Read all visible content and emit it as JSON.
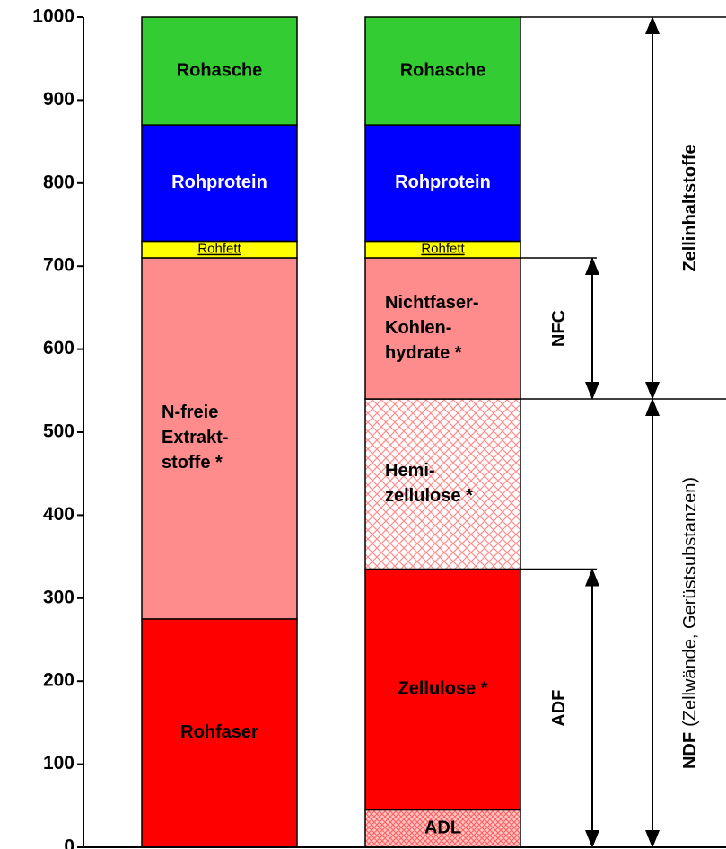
{
  "chart_data": {
    "type": "stacked-bar",
    "ylim": [
      0,
      1000
    ],
    "yticks": [
      0,
      100,
      200,
      300,
      400,
      500,
      600,
      700,
      800,
      900,
      1000
    ],
    "stacks": [
      {
        "segments": [
          {
            "label": [
              "Rohfaser"
            ],
            "value": 275,
            "color": "#ff0000",
            "label_color": "#000000"
          },
          {
            "label": [
              "N-freie",
              "Extrakt-",
              "stoffe *"
            ],
            "value": 435,
            "color": "#ff8c8c",
            "label_color": "#000000"
          },
          {
            "label": [
              "Rohfett"
            ],
            "value": 20,
            "color": "#ffff00",
            "label_color": "#000000",
            "small": true
          },
          {
            "label": [
              "Rohprotein"
            ],
            "value": 140,
            "color": "#0000ff",
            "label_color": "#ffffff"
          },
          {
            "label": [
              "Rohasche"
            ],
            "value": 130,
            "color": "#33cc33",
            "label_color": "#000000"
          }
        ]
      },
      {
        "segments": [
          {
            "label": [
              "ADL"
            ],
            "value": 45,
            "color": "#ff8c8c",
            "label_color": "#000000",
            "pattern": "dense"
          },
          {
            "label": [
              "Zellulose *"
            ],
            "value": 290,
            "color": "#ff0000",
            "label_color": "#000000"
          },
          {
            "label": [
              "Hemi-",
              "zellulose *"
            ],
            "value": 205,
            "color": "#ff8c8c",
            "label_color": "#000000",
            "pattern": "light"
          },
          {
            "label": [
              "Nichtfaser-",
              "Kohlen-",
              "hydrate *"
            ],
            "value": 170,
            "color": "#ff8c8c",
            "label_color": "#000000"
          },
          {
            "label": [
              "Rohfett"
            ],
            "value": 20,
            "color": "#ffff00",
            "label_color": "#000000",
            "small": true
          },
          {
            "label": [
              "Rohprotein"
            ],
            "value": 140,
            "color": "#0000ff",
            "label_color": "#ffffff"
          },
          {
            "label": [
              "Rohasche"
            ],
            "value": 130,
            "color": "#33cc33",
            "label_color": "#000000"
          }
        ]
      }
    ],
    "annotations": [
      {
        "label": "NFC",
        "from": 540,
        "to": 710
      },
      {
        "label": "ADF",
        "from": 0,
        "to": 335
      },
      {
        "label": "Zellinhaltstoffe",
        "from": 540,
        "to": 1000
      },
      {
        "label": "NDF",
        "note": "(Zellwände, Gerüstsubstanzen)",
        "from": 0,
        "to": 540
      }
    ]
  }
}
